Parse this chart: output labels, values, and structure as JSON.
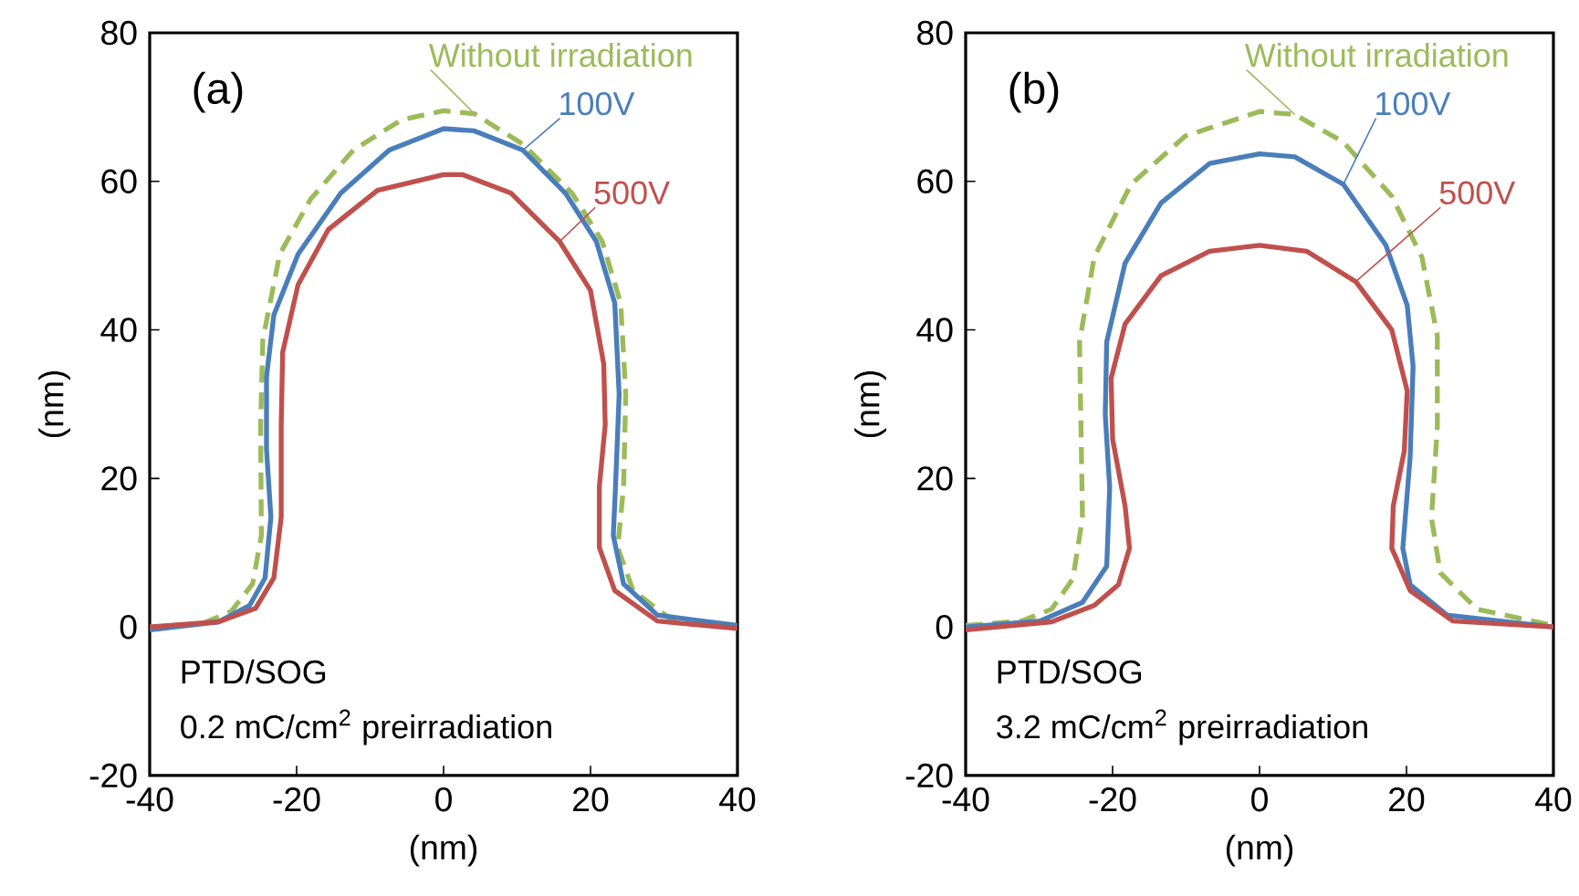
{
  "chart_data": [
    {
      "type": "line",
      "xlabel": "(nm)",
      "ylabel": "(nm)",
      "xlim": [
        -40,
        40
      ],
      "ylim": [
        -20,
        80
      ],
      "xticks": [
        -40,
        -20,
        0,
        20,
        40
      ],
      "yticks": [
        -20,
        0,
        20,
        40,
        60,
        80
      ],
      "grid": false,
      "legend": false,
      "annotations": [
        "(a)",
        "PTD/SOG",
        "0.2 mC/cm$^{2}$ preirradiation"
      ],
      "series": [
        {
          "name": "Without irradiation",
          "color": "#9bbb59",
          "line_style": "dashed",
          "x": [
            -40,
            -33,
            -28.9,
            -26,
            -24.8,
            -24.9,
            -24.6,
            -22.3,
            -18.1,
            -12.3,
            -5.7,
            0,
            4.2,
            10.8,
            17.5,
            21.6,
            24.1,
            24.8,
            24.5,
            23.7,
            25.8,
            30.7,
            40
          ],
          "values": [
            0,
            0.4,
            2.1,
            5.8,
            12.3,
            27.2,
            38.7,
            50.2,
            57.6,
            64.2,
            68.3,
            69.5,
            69.1,
            65,
            58.4,
            51.9,
            43.6,
            31.3,
            18.9,
            10.7,
            4.9,
            1.2,
            0.2
          ]
        },
        {
          "name": "100V",
          "color": "#4a7ebb",
          "line_style": "solid",
          "x": [
            -40,
            -30.6,
            -26.4,
            -24.3,
            -23.5,
            -24.1,
            -24.1,
            -23.1,
            -19.8,
            -14,
            -7.4,
            0,
            4.2,
            10.8,
            16.6,
            20.8,
            23.3,
            23.9,
            23.4,
            23.1,
            24.5,
            29.1,
            40
          ],
          "values": [
            -0.4,
            0.7,
            2.9,
            6.6,
            14.8,
            23.9,
            33.7,
            42,
            50.2,
            58.4,
            64.2,
            67.1,
            66.8,
            64.2,
            58.4,
            51.9,
            43.6,
            31.3,
            18.9,
            12.3,
            5.8,
            1.6,
            0.2
          ]
        },
        {
          "name": "500V",
          "color": "#c0504d",
          "line_style": "solid",
          "x": [
            -40,
            -30.6,
            -25.6,
            -23.1,
            -22.1,
            -22.1,
            -21.9,
            -19.8,
            -15.7,
            -9,
            0,
            2.6,
            9.2,
            15.8,
            20,
            21.8,
            22,
            21.2,
            21.2,
            23.3,
            29.1,
            40
          ],
          "values": [
            0,
            0.7,
            2.5,
            6.6,
            14.8,
            27.2,
            37,
            46.1,
            53.5,
            58.8,
            60.9,
            60.9,
            58.4,
            51.9,
            45.3,
            35.4,
            27.2,
            18.9,
            10.7,
            4.9,
            0.8,
            -0.2
          ]
        }
      ]
    },
    {
      "type": "line",
      "xlabel": "(nm)",
      "ylabel": "(nm)",
      "xlim": [
        -40,
        40
      ],
      "ylim": [
        -20,
        80
      ],
      "xticks": [
        -40,
        -20,
        0,
        20,
        40
      ],
      "yticks": [
        -20,
        0,
        20,
        40,
        60,
        80
      ],
      "grid": false,
      "legend": false,
      "annotations": [
        "(b)",
        "PTD/SOG",
        "3.2 mC/cm$^{2}$ preirradiation"
      ],
      "series": [
        {
          "name": "Without irradiation",
          "color": "#9bbb59",
          "line_style": "dashed",
          "x": [
            -40,
            -32.4,
            -28.3,
            -25.4,
            -24.1,
            -24.3,
            -24.5,
            -22.5,
            -17.5,
            -10.1,
            0,
            4.8,
            11.4,
            18,
            22.1,
            24.2,
            24.2,
            23.4,
            24.6,
            29.6,
            40
          ],
          "values": [
            0.2,
            0.8,
            2.4,
            6.5,
            14.7,
            26.9,
            38.4,
            49.8,
            59.6,
            66.1,
            69.4,
            69,
            65.3,
            58,
            49.8,
            39.2,
            26.9,
            14.7,
            7.3,
            2.4,
            0.2
          ]
        },
        {
          "name": "100V",
          "color": "#4a7ebb",
          "line_style": "solid",
          "x": [
            -40,
            -29.9,
            -24.1,
            -20.8,
            -20.4,
            -21,
            -20.8,
            -18.3,
            -13.4,
            -6.8,
            0,
            4.8,
            11.4,
            17.2,
            20.1,
            20.9,
            20.5,
            19.5,
            20.5,
            25.5,
            40
          ],
          "values": [
            0,
            0.8,
            3.3,
            8.2,
            18.8,
            28.6,
            38.4,
            49,
            57.1,
            62.4,
            63.7,
            63.3,
            59.6,
            51.4,
            43.3,
            35.1,
            22.9,
            10.6,
            5.7,
            1.6,
            0
          ]
        },
        {
          "name": "500V",
          "color": "#c0504d",
          "line_style": "solid",
          "x": [
            -40,
            -28.3,
            -22.5,
            -19.2,
            -17.7,
            -18.3,
            -20,
            -20.2,
            -18.3,
            -13.4,
            -6.8,
            0,
            6.4,
            13.1,
            18,
            20.1,
            19.7,
            18.2,
            18,
            20.5,
            26.3,
            40
          ],
          "values": [
            -0.4,
            0.7,
            2.9,
            5.7,
            10.6,
            16.3,
            25.3,
            33.5,
            40.8,
            47.3,
            50.6,
            51.4,
            50.6,
            46.5,
            40,
            31.8,
            23.7,
            16.3,
            10.6,
            4.9,
            0.8,
            0
          ]
        }
      ]
    }
  ]
}
